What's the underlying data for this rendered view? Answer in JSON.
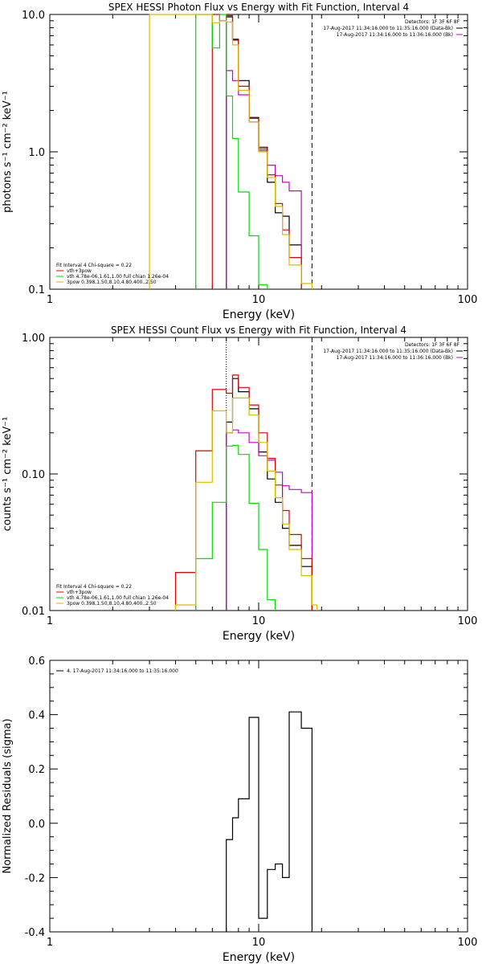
{
  "chart_data": [
    {
      "type": "line",
      "title": "SPEX HESSI Photon Flux vs Energy with Fit Function, Interval 4",
      "xlabel": "Energy (keV)",
      "ylabel": "photons s⁻¹ cm⁻² keV⁻¹",
      "xscale": "log",
      "yscale": "log",
      "xlim": [
        1,
        100
      ],
      "ylim": [
        0.1,
        10
      ],
      "xtick_labels": [
        "1",
        "10",
        "100"
      ],
      "ytick_labels": [
        "10.0",
        "1.0",
        "0.1"
      ],
      "vline_dotted": 7.0,
      "vline_dashed": 18.0,
      "detectors": "Detectors: 1F 3F 6F 8F",
      "legend_right": [
        {
          "label": "17-Aug-2017 11:34:16.000 to 11:35:16.000 (Data-Bk)",
          "color": "#000000"
        },
        {
          "label": "17-Aug-2017 11:34:16.000 to 11:36:16.000 (Bk)",
          "color": "#cc00cc"
        }
      ],
      "legend_left": [
        {
          "label": "Fit Interval 4   Chi-square = 0.22",
          "color": null
        },
        {
          "label": "vth+3pow",
          "color": "#e00000"
        },
        {
          "label": "vth 4.78e-06,1.61,1.00  full chian 1.26e-04",
          "color": "#00dd00"
        },
        {
          "label": "3pow 0.398,1.50,8.10,4.80,400.,2.50",
          "color": "#ddbb00"
        }
      ],
      "series": [
        {
          "name": "Data-Bk",
          "color": "#000000",
          "x": [
            7.0,
            7.5,
            8.0,
            9.0,
            10.0,
            11.0,
            12.0,
            13.0,
            14.0,
            16.0,
            18.0
          ],
          "y": [
            9.6,
            6.6,
            3.3,
            1.78,
            1.08,
            0.6,
            0.36,
            0.34,
            0.21,
            null,
            null
          ]
        },
        {
          "name": "Bk",
          "color": "#cc00cc",
          "x": [
            7.0,
            7.5,
            8.0,
            9.0,
            10.0,
            11.0,
            12.0,
            13.0,
            14.0,
            16.0,
            18.0
          ],
          "y": [
            3.9,
            3.3,
            2.6,
            1.65,
            1.02,
            0.8,
            0.67,
            0.6,
            0.52,
            null,
            null
          ]
        },
        {
          "name": "vth+3pow",
          "color": "#e00000",
          "x": [
            6.0,
            6.5,
            7.0,
            7.5,
            8.0,
            9.0,
            10.0,
            11.0,
            12.0,
            13.0,
            14.0,
            16.0,
            18.0
          ],
          "y": [
            10,
            9.0,
            9.8,
            6.5,
            3.0,
            1.75,
            1.05,
            0.68,
            0.42,
            0.27,
            0.17,
            null,
            null
          ]
        },
        {
          "name": "vth",
          "color": "#00dd00",
          "x": [
            5.0,
            6.0,
            6.5,
            7.0,
            7.5,
            8.0,
            9.0,
            10.0,
            11.0
          ],
          "y": [
            10,
            5.7,
            10,
            2.55,
            1.25,
            0.51,
            0.245,
            0.108,
            null
          ]
        },
        {
          "name": "3pow",
          "color": "#ddbb00",
          "x": [
            3.0,
            6.0,
            6.5,
            7.0,
            7.5,
            8.0,
            9.0,
            10.0,
            11.0,
            12.0,
            13.0,
            14.0,
            16.0,
            18.0
          ],
          "y": [
            10,
            8.7,
            9.0,
            8.8,
            6.0,
            2.8,
            1.65,
            1.0,
            0.65,
            0.4,
            0.25,
            0.15,
            0.11,
            null
          ]
        }
      ]
    },
    {
      "type": "line",
      "title": "SPEX HESSI Count Flux vs Energy with Fit Function, Interval 4",
      "xlabel": "Energy (keV)",
      "ylabel": "counts s⁻¹ cm⁻² keV⁻¹",
      "xscale": "log",
      "yscale": "log",
      "xlim": [
        1,
        100
      ],
      "ylim": [
        0.01,
        1.0
      ],
      "xtick_labels": [
        "1",
        "10",
        "100"
      ],
      "ytick_labels": [
        "1.00",
        "0.10",
        "0.01"
      ],
      "vline_dotted": 7.0,
      "vline_dashed": 18.0,
      "detectors": "Detectors: 1F 3F 6F 8F",
      "legend_right": [
        {
          "label": "17-Aug-2017 11:34:16.000 to 11:35:16.000 (Data-Bk)",
          "color": "#000000"
        },
        {
          "label": "17-Aug-2017 11:34:16.000 to 11:36:16.000 (Bk)",
          "color": "#cc00cc"
        }
      ],
      "legend_left": [
        {
          "label": "Fit Interval 4   Chi-square = 0.22",
          "color": null
        },
        {
          "label": "vth+3pow",
          "color": "#e00000"
        },
        {
          "label": "vth 4.78e-06,1.61,1.00  full chian 1.26e-04",
          "color": "#00dd00"
        },
        {
          "label": "3pow 0.398,1.50,8.10,4.80,400.,2.50",
          "color": "#ddbb00"
        }
      ],
      "series": [
        {
          "name": "Data-Bk",
          "color": "#000000",
          "x": [
            7.0,
            7.5,
            8.0,
            9.0,
            10.0,
            11.0,
            12.0,
            13.0,
            14.0,
            16.0,
            18.0
          ],
          "y": [
            0.24,
            0.5,
            0.4,
            0.3,
            0.145,
            0.092,
            0.062,
            0.04,
            0.03,
            0.021,
            null
          ]
        },
        {
          "name": "Bk",
          "color": "#cc00cc",
          "x": [
            7.0,
            7.5,
            8.0,
            9.0,
            10.0,
            11.0,
            12.0,
            13.0,
            14.0,
            16.0,
            18.0
          ],
          "y": [
            0.2,
            0.21,
            0.2,
            0.17,
            0.136,
            0.126,
            0.103,
            0.082,
            0.077,
            0.073,
            null
          ]
        },
        {
          "name": "vth+3pow",
          "color": "#e00000",
          "x": [
            4.0,
            5.0,
            6.0,
            7.0,
            7.5,
            8.0,
            9.0,
            10.0,
            11.0,
            12.0,
            13.0,
            14.0,
            16.0,
            18.0
          ],
          "y": [
            0.019,
            0.148,
            0.415,
            0.39,
            0.53,
            0.43,
            0.32,
            0.2,
            0.13,
            0.083,
            0.054,
            0.036,
            0.024,
            null
          ]
        },
        {
          "name": "vth",
          "color": "#00dd00",
          "x": [
            5.0,
            6.0,
            7.0,
            7.5,
            8.0,
            9.0,
            10.0,
            11.0,
            12.0
          ],
          "y": [
            0.024,
            0.062,
            0.16,
            0.162,
            0.139,
            0.061,
            0.028,
            0.012,
            null
          ]
        },
        {
          "name": "3pow",
          "color": "#ddbb00",
          "x": [
            4.0,
            5.0,
            6.0,
            7.0,
            7.5,
            8.0,
            9.0,
            10.0,
            11.0,
            12.0,
            13.0,
            14.0,
            16.0,
            18.0,
            19.0
          ],
          "y": [
            0.011,
            0.087,
            0.29,
            0.2,
            0.36,
            0.36,
            0.27,
            0.17,
            0.105,
            0.067,
            0.043,
            0.028,
            0.018,
            0.011,
            null
          ]
        }
      ]
    },
    {
      "type": "line",
      "title": "",
      "xlabel": "Energy (keV)",
      "ylabel": "Normalized Residuals (sigma)",
      "xscale": "log",
      "yscale": "linear",
      "xlim": [
        1,
        100
      ],
      "ylim": [
        -0.4,
        0.6
      ],
      "xtick_labels": [
        "1",
        "10",
        "100"
      ],
      "ytick_labels": [
        "0.6",
        "0.4",
        "0.2",
        "0.0",
        "-0.2",
        "-0.4"
      ],
      "legend_left": [
        {
          "label": "4. 17-Aug-2017 11:34:16.000 to 11:35:16.000",
          "color": "#000000"
        }
      ],
      "series": [
        {
          "name": "4. 17-Aug-2017 11:34:16.000 to 11:35:16.000",
          "color": "#000000",
          "x": [
            7.0,
            7.5,
            8.0,
            9.0,
            10.0,
            11.0,
            12.0,
            13.0,
            14.0,
            16.0,
            18.0
          ],
          "y": [
            -0.06,
            0.02,
            0.09,
            0.39,
            -0.35,
            -0.17,
            -0.15,
            -0.2,
            0.41,
            0.35,
            null
          ]
        }
      ]
    }
  ]
}
